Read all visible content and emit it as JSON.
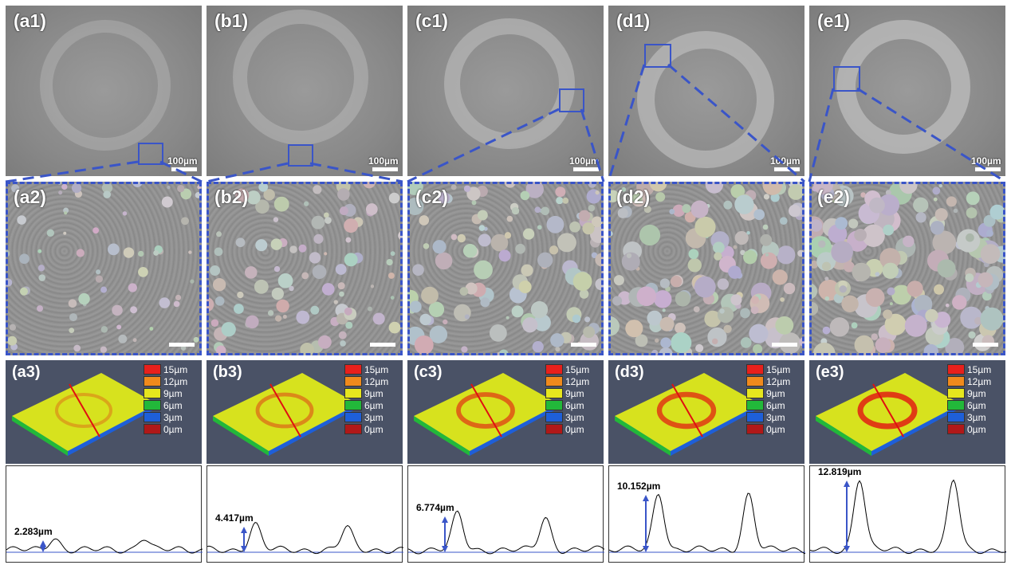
{
  "columns": [
    {
      "id": "a",
      "labels": [
        "(a1)",
        "(a2)",
        "(a3)"
      ],
      "scale_label": "100µm",
      "height_label": "2.283µm",
      "ring_strength": 0.25
    },
    {
      "id": "b",
      "labels": [
        "(b1)",
        "(b2)",
        "(b3)"
      ],
      "scale_label": "100µm",
      "height_label": "4.417µm",
      "ring_strength": 0.45
    },
    {
      "id": "c",
      "labels": [
        "(c1)",
        "(c2)",
        "(c3)"
      ],
      "scale_label": "100µm",
      "height_label": "6.774µm",
      "ring_strength": 0.7
    },
    {
      "id": "d",
      "labels": [
        "(d1)",
        "(d2)",
        "(d3)"
      ],
      "scale_label": "100µm",
      "height_label": "10.152µm",
      "ring_strength": 0.85
    },
    {
      "id": "e",
      "labels": [
        "(e1)",
        "(e2)",
        "(e3)"
      ],
      "scale_label": "100µm",
      "height_label": "12.819µm",
      "ring_strength": 1.0
    }
  ],
  "legend": [
    {
      "label": "15µm",
      "color": "#e8201c"
    },
    {
      "label": "12µm",
      "color": "#f08a1c"
    },
    {
      "label": "9µm",
      "color": "#e6e61e"
    },
    {
      "label": "6µm",
      "color": "#22b83a"
    },
    {
      "label": "3µm",
      "color": "#1e5fd8"
    },
    {
      "label": "0µm",
      "color": "#b01818"
    }
  ],
  "colors": {
    "accent": "#3a55c8",
    "map_bg": "#4a5266",
    "surface": "#d7e21e",
    "cut_line": "#e01010"
  }
}
